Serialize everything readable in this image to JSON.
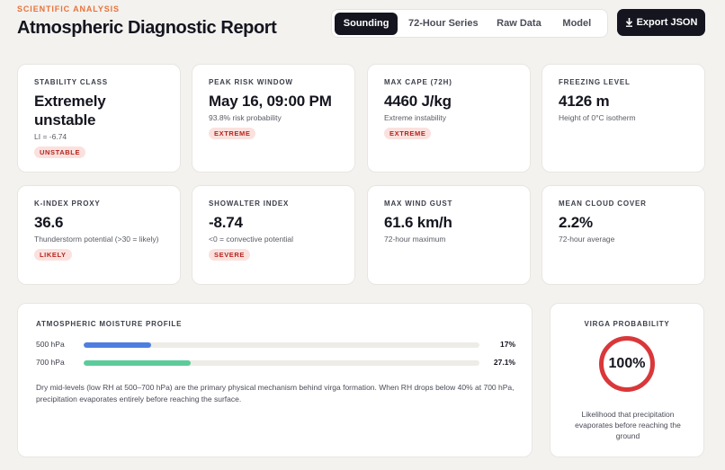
{
  "header": {
    "eyebrow": "SCIENTIFIC ANALYSIS",
    "title": "Atmospheric Diagnostic Report",
    "tabs": [
      {
        "label": "Sounding",
        "active": true
      },
      {
        "label": "72-Hour Series",
        "active": false
      },
      {
        "label": "Raw Data",
        "active": false
      },
      {
        "label": "Model",
        "active": false
      }
    ],
    "export_icon": "download-arrow-icon",
    "export_label": "Export JSON"
  },
  "stats": [
    {
      "label": "STABILITY CLASS",
      "value": "Extremely unstable",
      "sub": "LI = -6.74",
      "badge": "UNSTABLE"
    },
    {
      "label": "PEAK RISK WINDOW",
      "value": "May 16, 09:00 PM",
      "sub": "93.8% risk probability",
      "badge": "EXTREME"
    },
    {
      "label": "MAX CAPE (72H)",
      "value": "4460 J/kg",
      "sub": "Extreme instability",
      "badge": "EXTREME"
    },
    {
      "label": "FREEZING LEVEL",
      "value": "4126 m",
      "sub": "Height of 0°C isotherm",
      "badge": ""
    },
    {
      "label": "K-INDEX PROXY",
      "value": "36.6",
      "sub": "Thunderstorm potential (>30 = likely)",
      "badge": "LIKELY"
    },
    {
      "label": "SHOWALTER INDEX",
      "value": "-8.74",
      "sub": "<0 = convective potential",
      "badge": "SEVERE"
    },
    {
      "label": "MAX WIND GUST",
      "value": "61.6 km/h",
      "sub": "72-hour maximum",
      "badge": ""
    },
    {
      "label": "MEAN CLOUD COVER",
      "value": "2.2%",
      "sub": "72-hour average",
      "badge": ""
    }
  ],
  "moisture": {
    "title": "ATMOSPHERIC MOISTURE PROFILE",
    "levels": [
      {
        "label": "500 hPa",
        "percent": 17,
        "percent_text": "17%",
        "color": "#4f7ee0"
      },
      {
        "label": "700 hPa",
        "percent": 27.1,
        "percent_text": "27.1%",
        "color": "#5ccb9b"
      }
    ],
    "description": "Dry mid-levels (low RH at 500–700 hPa) are the primary physical mechanism behind virga formation. When RH drops below 40% at 700 hPa, precipitation evaporates entirely before reaching the surface."
  },
  "virga": {
    "title": "VIRGA PROBABILITY",
    "value": "100%",
    "ring_color": "#d9383a",
    "description": "Likelihood that precipitation evaporates before reaching the ground"
  }
}
